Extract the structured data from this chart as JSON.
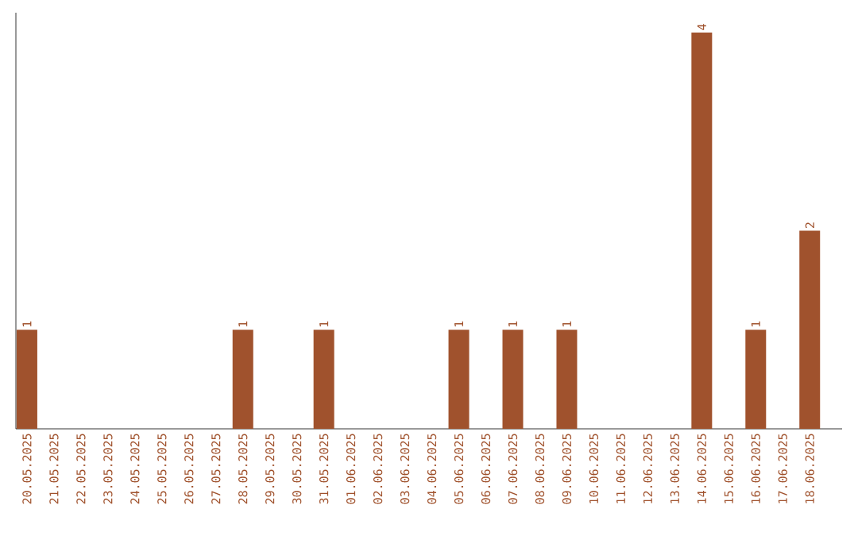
{
  "chart_data": {
    "type": "bar",
    "color": "#a0522d",
    "categories": [
      "20.05.2025",
      "21.05.2025",
      "22.05.2025",
      "23.05.2025",
      "24.05.2025",
      "25.05.2025",
      "26.05.2025",
      "27.05.2025",
      "28.05.2025",
      "29.05.2025",
      "30.05.2025",
      "31.05.2025",
      "01.06.2025",
      "02.06.2025",
      "03.06.2025",
      "04.06.2025",
      "05.06.2025",
      "06.06.2025",
      "07.06.2025",
      "08.06.2025",
      "09.06.2025",
      "10.06.2025",
      "11.06.2025",
      "12.06.2025",
      "13.06.2025",
      "14.06.2025",
      "15.06.2025",
      "16.06.2025",
      "17.06.2025",
      "18.06.2025"
    ],
    "values": [
      1,
      0,
      0,
      0,
      0,
      0,
      0,
      0,
      1,
      0,
      0,
      1,
      0,
      0,
      0,
      0,
      1,
      0,
      1,
      0,
      1,
      0,
      0,
      0,
      0,
      4,
      0,
      1,
      0,
      2
    ],
    "value_labels": [
      "1",
      null,
      null,
      null,
      null,
      null,
      null,
      null,
      "1",
      null,
      null,
      "1",
      null,
      null,
      null,
      null,
      "1",
      null,
      "1",
      null,
      "1",
      null,
      null,
      null,
      null,
      "4",
      null,
      "1",
      null,
      "2"
    ]
  }
}
